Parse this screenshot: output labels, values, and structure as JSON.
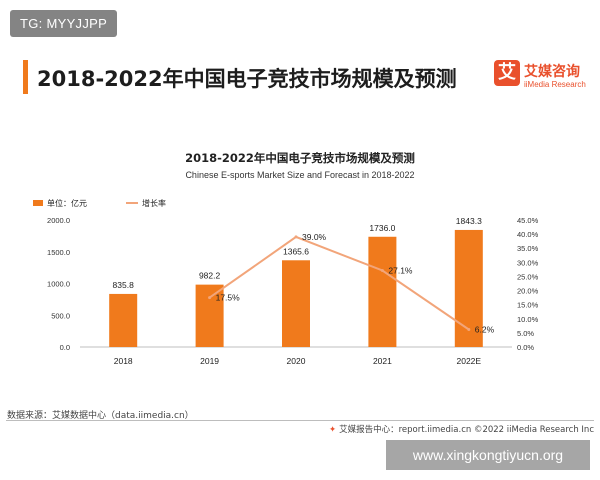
{
  "badge": "TG: MYYJJPP",
  "page_title": "2018-2022年中国电子竞技市场规模及预测",
  "logo": {
    "mark": "艾",
    "cn": "艾媒咨询",
    "en": "iiMedia Research"
  },
  "footer": {
    "source": "数据来源：艾媒数据中心（data.iimedia.cn）",
    "right": "艾媒报告中心：report.iimedia.cn ©2022 iiMedia Research Inc"
  },
  "watermark": "www.xingkongtiyucn.org",
  "colors": {
    "accent": "#f07a1c",
    "line": "#f2a57a",
    "brand": "#e9502c"
  },
  "chart_data": {
    "type": "bar",
    "title": "2018-2022年中国电子竞技市场规模及预测",
    "subtitle": "Chinese E-sports Market Size and Forecast in 2018-2022",
    "categories": [
      "2018",
      "2019",
      "2020",
      "2021",
      "2022E"
    ],
    "series": [
      {
        "name": "单位：亿元",
        "type": "bar",
        "axis": "left",
        "values": [
          835.8,
          982.2,
          1365.6,
          1736.0,
          1843.3
        ],
        "labels": [
          "835.8",
          "982.2",
          "1365.6",
          "1736.0",
          "1843.3"
        ]
      },
      {
        "name": "增长率",
        "type": "line",
        "axis": "right",
        "values": [
          null,
          17.5,
          39.0,
          27.1,
          6.2
        ],
        "labels": [
          "",
          "17.5%",
          "39.0%",
          "27.1%",
          "6.2%"
        ]
      }
    ],
    "ylim": [
      0,
      2000
    ],
    "yticks": [
      "0.0",
      "500.0",
      "1000.0",
      "1500.0",
      "2000.0"
    ],
    "y2lim": [
      0,
      45
    ],
    "y2ticks": [
      "0.0%",
      "5.0%",
      "10.0%",
      "15.0%",
      "20.0%",
      "25.0%",
      "30.0%",
      "35.0%",
      "40.0%",
      "45.0%"
    ],
    "legend_position": "top-left",
    "grid": false
  }
}
